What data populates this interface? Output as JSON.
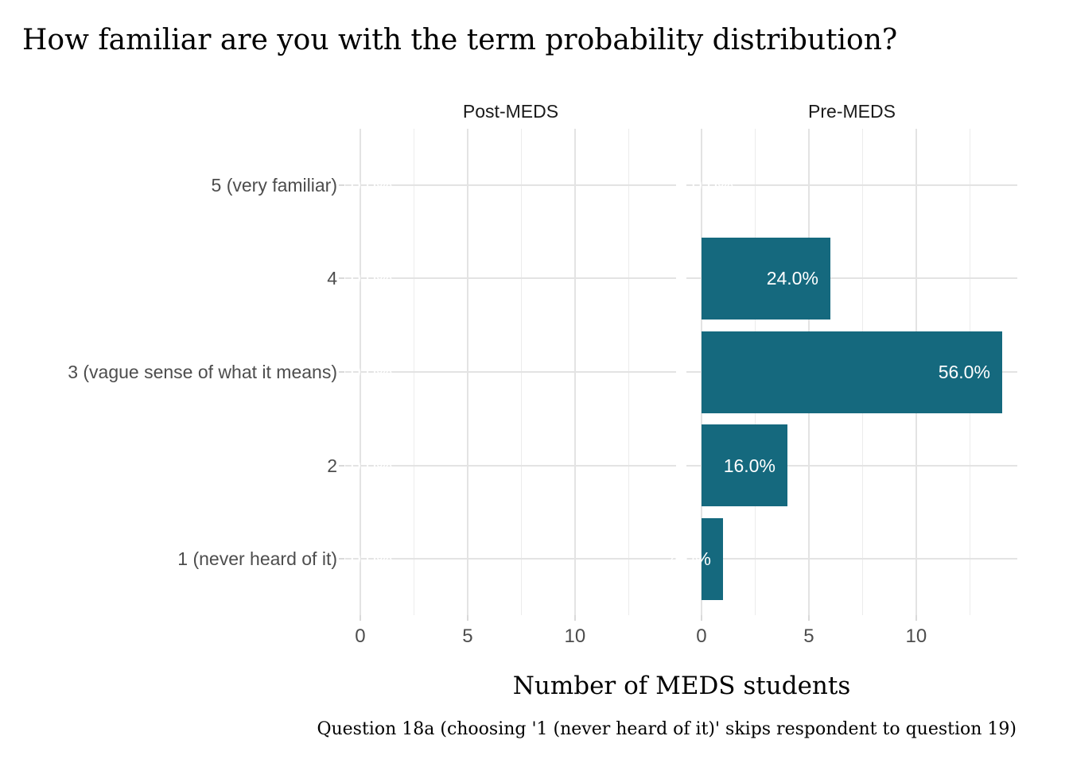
{
  "chart_data": {
    "type": "bar",
    "orientation": "horizontal",
    "title": "How familiar are you with the term probability distribution?",
    "xlabel": "Number of MEDS students",
    "caption": "Question 18a (choosing '1 (never heard of it)' skips respondent to question 19)",
    "categories": [
      "5 (very familiar)",
      "4",
      "3 (vague sense of what it means)",
      "2",
      "1 (never heard of it)"
    ],
    "facets": [
      {
        "name": "Post-MEDS",
        "values": [
          0,
          0,
          0,
          0,
          0
        ],
        "labels": [
          "0.0%",
          "0.0%",
          "0.0%",
          "0.0%",
          "0.0%"
        ]
      },
      {
        "name": "Pre-MEDS",
        "values": [
          0,
          6,
          14,
          4,
          1
        ],
        "labels": [
          "0.0%",
          "24.0%",
          "56.0%",
          "16.0%",
          "4.0%"
        ]
      }
    ],
    "x_major_ticks": [
      0,
      5,
      10
    ],
    "x_minor_ticks": [
      2.5,
      7.5,
      12.5
    ],
    "xlim": [
      -0.7,
      14.7
    ],
    "grid": true,
    "legend": "none",
    "colors": {
      "bar": "#15697E",
      "bar_label": "#FFFFFF",
      "grid_major": "#E3E3E3",
      "grid_minor": "#ECECEC",
      "tick_mark": "#D9D9D9",
      "axis_text": "#4D4D4D",
      "strip_text": "#1A1A1A",
      "title_text": "#000000"
    }
  }
}
